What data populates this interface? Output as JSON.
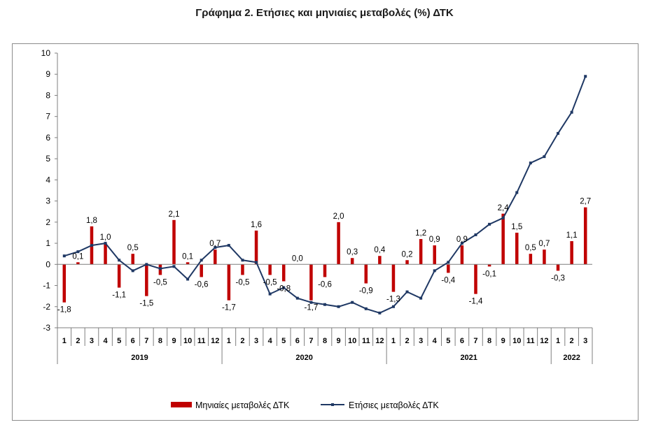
{
  "chart_data": {
    "type": "bar",
    "title": "Γράφημα 2. Ετήσιες και μηνιαίες μεταβολές (%) ΔΤΚ",
    "ylim": [
      -3,
      10
    ],
    "yticks": [
      -3,
      -2,
      -1,
      0,
      1,
      2,
      3,
      4,
      5,
      6,
      7,
      8,
      9,
      10
    ],
    "grid": false,
    "legend": "bottom",
    "months": [
      "1",
      "2",
      "3",
      "4",
      "5",
      "6",
      "7",
      "8",
      "9",
      "10",
      "11",
      "12",
      "1",
      "2",
      "3",
      "4",
      "5",
      "6",
      "7",
      "8",
      "9",
      "10",
      "11",
      "12",
      "1",
      "2",
      "3",
      "4",
      "5",
      "6",
      "7",
      "8",
      "9",
      "10",
      "11",
      "12",
      "1",
      "2",
      "3"
    ],
    "years": [
      {
        "label": "2019",
        "count": 12
      },
      {
        "label": "2020",
        "count": 12
      },
      {
        "label": "2021",
        "count": 12
      },
      {
        "label": "2022",
        "count": 3
      }
    ],
    "series": [
      {
        "name": "Μηνιαίες μεταβολές ΔΤΚ",
        "type": "bar",
        "color": "#c00000",
        "values": [
          -1.8,
          0.1,
          1.8,
          1.0,
          -1.1,
          0.5,
          -1.5,
          -0.5,
          2.1,
          0.1,
          -0.6,
          0.7,
          -1.7,
          -0.5,
          1.6,
          -0.5,
          -0.8,
          0.0,
          -1.7,
          -0.6,
          2.0,
          0.3,
          -0.9,
          0.4,
          -1.3,
          0.2,
          1.2,
          0.9,
          -0.4,
          0.9,
          -1.4,
          -0.1,
          2.4,
          1.5,
          0.5,
          0.7,
          -0.3,
          1.1,
          2.7
        ],
        "labels": [
          "-1,8",
          "0,1",
          "1,8",
          "1,0",
          "-1,1",
          "0,5",
          "-1,5",
          "-0,5",
          "2,1",
          "0,1",
          "-0,6",
          "0,7",
          "-1,7",
          "-0,5",
          "1,6",
          "-0,5",
          "-0,8",
          "0,0",
          "-1,7",
          "-0,6",
          "2,0",
          "0,3",
          "-0,9",
          "0,4",
          "-1,3",
          "0,2",
          "1,2",
          "0,9",
          "-0,4",
          "0,9",
          "-1,4",
          "-0,1",
          "2,4",
          "1,5",
          "0,5",
          "0,7",
          "-0,3",
          "1,1",
          "2,7"
        ]
      },
      {
        "name": "Ετήσιες μεταβολές ΔΤΚ",
        "type": "line",
        "color": "#1f3864",
        "values": [
          0.4,
          0.6,
          0.9,
          1.0,
          0.2,
          -0.3,
          0.0,
          -0.2,
          -0.1,
          -0.7,
          0.2,
          0.8,
          0.9,
          0.2,
          0.1,
          -1.4,
          -1.1,
          -1.6,
          -1.8,
          -1.9,
          -2.0,
          -1.8,
          -2.1,
          -2.3,
          -2.0,
          -1.3,
          -1.6,
          -0.3,
          0.1,
          1.0,
          1.4,
          1.9,
          2.2,
          3.4,
          4.8,
          5.1,
          6.2,
          7.2,
          8.9
        ]
      }
    ]
  }
}
